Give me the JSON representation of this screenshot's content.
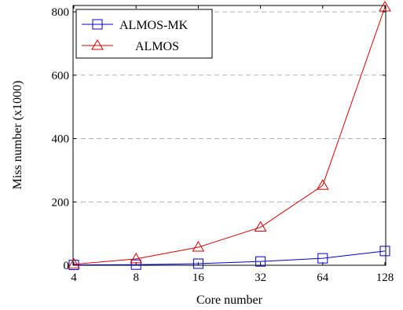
{
  "chart_data": {
    "type": "line",
    "xlabel": "Core number",
    "ylabel": "Miss number (x1000)",
    "x_scale": "log2",
    "categories": [
      "4",
      "8",
      "16",
      "32",
      "64",
      "128"
    ],
    "x": [
      4,
      8,
      16,
      32,
      64,
      128
    ],
    "ylim": [
      0,
      820
    ],
    "yticks": [
      0,
      200,
      400,
      600,
      800
    ],
    "ytick_labels": [
      "0",
      "200",
      "400",
      "600",
      "800"
    ],
    "grid": "horizontal dashed",
    "legend_position": "top-left",
    "series": [
      {
        "name": "ALMOS-MK",
        "color": "#0000cc",
        "marker": "square",
        "values": [
          1,
          2,
          5,
          12,
          22,
          45
        ]
      },
      {
        "name": "ALMOS",
        "color": "#dd0000",
        "marker": "triangle",
        "values": [
          3,
          20,
          57,
          120,
          252,
          815
        ]
      }
    ]
  }
}
